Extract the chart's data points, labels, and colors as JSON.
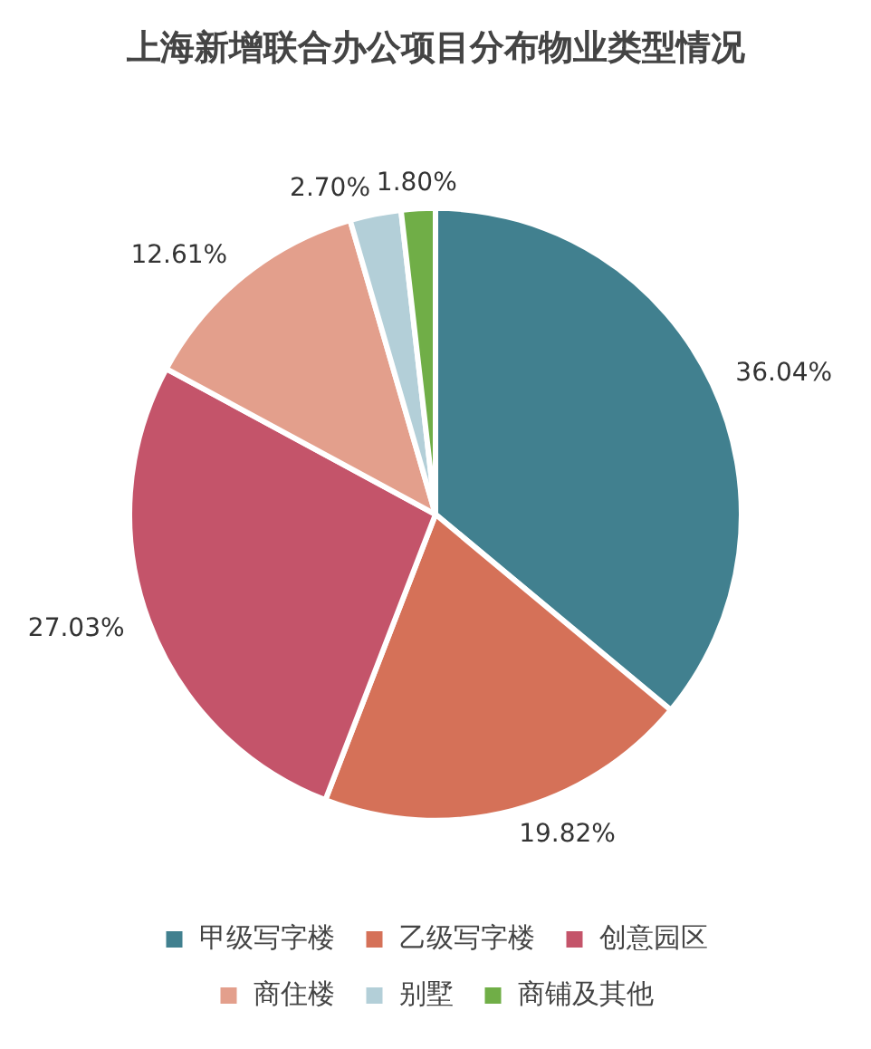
{
  "chart_data": {
    "type": "pie",
    "title": "上海新增联合办公项目分布物业类型情况",
    "categories": [
      "甲级写字楼",
      "乙级写字楼",
      "创意园区",
      "商住楼",
      "别墅",
      "商铺及其他"
    ],
    "values": [
      36.04,
      19.82,
      27.03,
      12.61,
      2.7,
      1.8
    ],
    "value_labels": [
      "36.04%",
      "19.82%",
      "27.03%",
      "12.61%",
      "2.70%",
      "1.80%"
    ],
    "colors": [
      "#41808f",
      "#d57158",
      "#c4546a",
      "#e39f8c",
      "#b3cfd8",
      "#70ae47"
    ],
    "legend": "bottom"
  }
}
